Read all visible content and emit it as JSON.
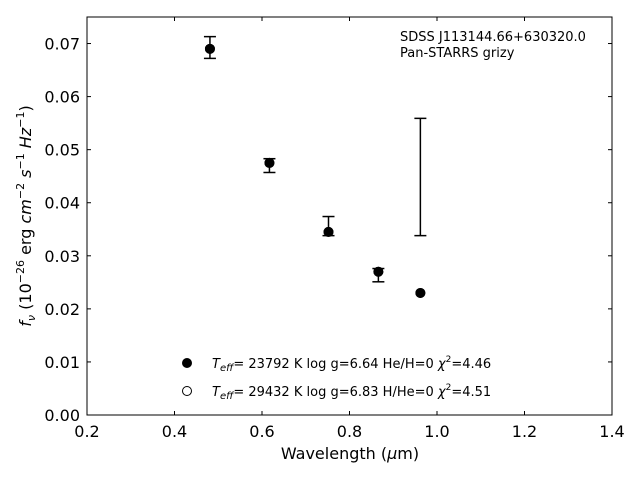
{
  "chart_data": {
    "type": "scatter",
    "xlabel_pre": "Wavelength (",
    "xlabel_mu": "μ",
    "xlabel_post": "m)",
    "ylabel_f": "f",
    "ylabel_sub": "ν",
    "ylabel_p1": " (10",
    "ylabel_exp1": "−26",
    "ylabel_p2": " erg ",
    "ylabel_cm": "cm",
    "ylabel_exp2": "−2",
    "ylabel_s": " s",
    "ylabel_exp3": "−1",
    "ylabel_hz": " Hz",
    "ylabel_exp4": "−1",
    "ylabel_close": ")",
    "xlim": [
      0.2,
      1.4
    ],
    "ylim": [
      0.0,
      0.075
    ],
    "xticks": [
      "0.2",
      "0.4",
      "0.6",
      "0.8",
      "1.0",
      "1.2",
      "1.4"
    ],
    "yticks": [
      "0.00",
      "0.01",
      "0.02",
      "0.03",
      "0.04",
      "0.05",
      "0.06",
      "0.07"
    ],
    "annotation_line1": "SDSS J113144.66+630320.0",
    "annotation_line2": "Pan-STARRS grizy",
    "observed": [
      {
        "x": 0.481,
        "y": 0.0693,
        "ylo": 0.0672,
        "yhi": 0.0713
      },
      {
        "x": 0.617,
        "y": 0.047,
        "ylo": 0.0457,
        "yhi": 0.0483
      },
      {
        "x": 0.752,
        "y": 0.0352,
        "ylo": 0.0338,
        "yhi": 0.0374
      },
      {
        "x": 0.866,
        "y": 0.0265,
        "ylo": 0.0251,
        "yhi": 0.0276
      },
      {
        "x": 0.962,
        "y": 0.0448,
        "ylo": 0.0338,
        "yhi": 0.0559
      }
    ],
    "model_filled": [
      {
        "x": 0.481,
        "y": 0.069
      },
      {
        "x": 0.617,
        "y": 0.0475
      },
      {
        "x": 0.752,
        "y": 0.0345
      },
      {
        "x": 0.866,
        "y": 0.027
      },
      {
        "x": 0.962,
        "y": 0.023
      }
    ],
    "model_open": [
      {
        "x": 0.481,
        "y": 0.069
      },
      {
        "x": 0.617,
        "y": 0.0475
      },
      {
        "x": 0.752,
        "y": 0.0345
      },
      {
        "x": 0.866,
        "y": 0.027
      },
      {
        "x": 0.962,
        "y": 0.023
      }
    ],
    "legend": [
      {
        "marker": "filled",
        "t": "T",
        "t_sub": "eff",
        "rest": "= 23792 K  log g=6.64  He/H=0  ",
        "chi": "χ",
        "chi_exp": "2",
        "chi_val": "=4.46"
      },
      {
        "marker": "open",
        "t": "T",
        "t_sub": "eff",
        "rest": "= 29432 K  log g=6.83  H/He=0  ",
        "chi": "χ",
        "chi_exp": "2",
        "chi_val": "=4.51"
      }
    ],
    "legend_position": "lower-center"
  }
}
